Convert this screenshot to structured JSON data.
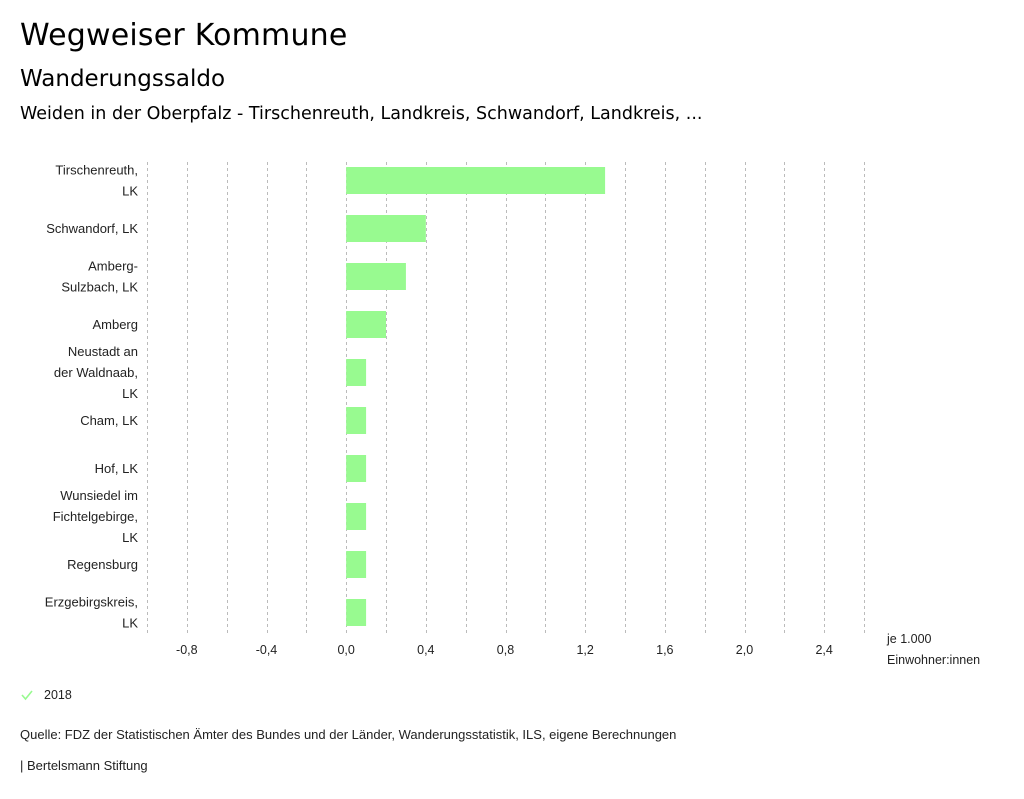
{
  "header": {
    "title": "Wegweiser Kommune",
    "subtitle": "Wanderungssaldo",
    "region": "Weiden in der Oberpfalz - Tirschenreuth, Landkreis, Schwandorf, Landkreis, ..."
  },
  "chart_data": {
    "type": "bar",
    "orientation": "horizontal",
    "title": "Wanderungssaldo",
    "categories": [
      [
        "Tirschenreuth,",
        "LK"
      ],
      [
        "Schwandorf, LK"
      ],
      [
        "Amberg-",
        "Sulzbach, LK"
      ],
      [
        "Amberg"
      ],
      [
        "Neustadt an",
        "der Waldnaab,",
        "LK"
      ],
      [
        "Cham, LK"
      ],
      [
        "Hof, LK"
      ],
      [
        "Wunsiedel im",
        "Fichtelgebirge,",
        "LK"
      ],
      [
        "Regensburg"
      ],
      [
        "Erzgebirgskreis,",
        "LK"
      ]
    ],
    "series": [
      {
        "name": "2018",
        "color": "#98fa90",
        "values": [
          1.3,
          0.4,
          0.3,
          0.2,
          0.1,
          0.1,
          0.1,
          0.1,
          0.1,
          0.1
        ]
      }
    ],
    "xlim": [
      -1.0,
      2.6
    ],
    "grid_step": 0.2,
    "ticks": [
      -0.8,
      -0.4,
      0.0,
      0.4,
      0.8,
      1.2,
      1.6,
      2.0,
      2.4
    ],
    "tick_labels": [
      "-0,8",
      "-0,4",
      "0,0",
      "0,4",
      "0,8",
      "1,2",
      "1,6",
      "2,0",
      "2,4"
    ],
    "xlabel": [
      "je 1.000",
      "Einwohner:innen"
    ],
    "ylabel": "",
    "grid": true,
    "grid_color": "#bbbbbb",
    "legend_position": "bottom-left"
  },
  "legend": {
    "items": [
      {
        "label": "2018",
        "icon": "check-icon",
        "color": "#98fa90"
      }
    ]
  },
  "footer": {
    "source": "Quelle: FDZ der Statistischen Ämter des Bundes und der Länder, Wanderungsstatistik, ILS, eigene Berechnungen",
    "brand": "| Bertelsmann Stiftung"
  }
}
